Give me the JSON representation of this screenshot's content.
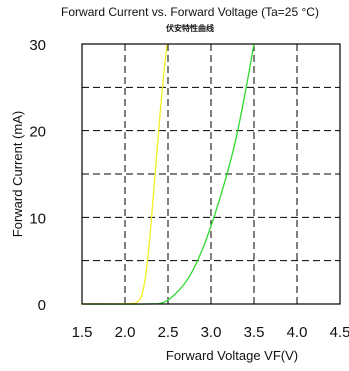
{
  "chart_data": {
    "type": "line",
    "title": "Forward Current vs. Forward Voltage (Ta=25 °C)",
    "subtitle": "伏安特性曲线",
    "xlabel": "Forward Voltage  VF(V)",
    "ylabel": "Forward Current (mA)",
    "xlim": [
      1.5,
      4.5
    ],
    "ylim": [
      0,
      30
    ],
    "x_ticks": [
      "1.5",
      "2.0",
      "2.5",
      "3.0",
      "3.5",
      "4.0",
      "4.5"
    ],
    "y_ticks": [
      "0",
      "10",
      "20",
      "30"
    ],
    "x_tick_values": [
      1.5,
      2.0,
      2.5,
      3.0,
      3.5,
      4.0,
      4.5
    ],
    "y_tick_values": [
      0,
      10,
      20,
      30
    ],
    "x_gridlines": [
      2.0,
      2.5,
      3.0,
      3.5,
      4.0
    ],
    "y_gridlines": [
      5,
      10,
      15,
      20,
      25
    ],
    "grid": true,
    "grid_style": "dashed",
    "series": [
      {
        "color": "#f0f020",
        "points": [
          [
            1.5,
            0
          ],
          [
            2.05,
            0.05
          ],
          [
            2.15,
            0.3
          ],
          [
            2.2,
            1.2
          ],
          [
            2.25,
            4
          ],
          [
            2.3,
            9
          ],
          [
            2.35,
            15
          ],
          [
            2.4,
            21
          ],
          [
            2.45,
            26.5
          ],
          [
            2.49,
            30
          ]
        ]
      },
      {
        "color": "#2fd82f",
        "points": [
          [
            1.5,
            0
          ],
          [
            2.25,
            0
          ],
          [
            2.45,
            0.2
          ],
          [
            2.6,
            1.3
          ],
          [
            2.75,
            3.2
          ],
          [
            2.9,
            6.3
          ],
          [
            3.05,
            10.5
          ],
          [
            3.2,
            15.5
          ],
          [
            3.3,
            19.5
          ],
          [
            3.4,
            24.5
          ],
          [
            3.5,
            30
          ]
        ]
      }
    ]
  }
}
